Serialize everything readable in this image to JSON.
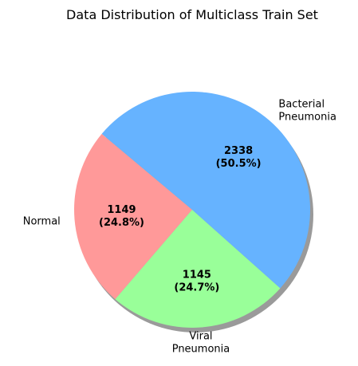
{
  "chart_data": {
    "type": "pie",
    "title": "Data Distribution of Multiclass Train Set",
    "slices": [
      {
        "label_lines": [
          "Normal"
        ],
        "value": 1149,
        "percent_label": "(24.8%)",
        "color": "#ff9999"
      },
      {
        "label_lines": [
          "Viral",
          "Pneumonia"
        ],
        "value": 1145,
        "percent_label": "(24.7%)",
        "color": "#99ff99"
      },
      {
        "label_lines": [
          "Bacterial",
          "Pneumonia"
        ],
        "value": 2338,
        "percent_label": "(50.5%)",
        "color": "#66b3ff"
      }
    ],
    "start_angle_deg": 140,
    "direction": "counterclockwise",
    "shadow": true,
    "legend": "none"
  }
}
